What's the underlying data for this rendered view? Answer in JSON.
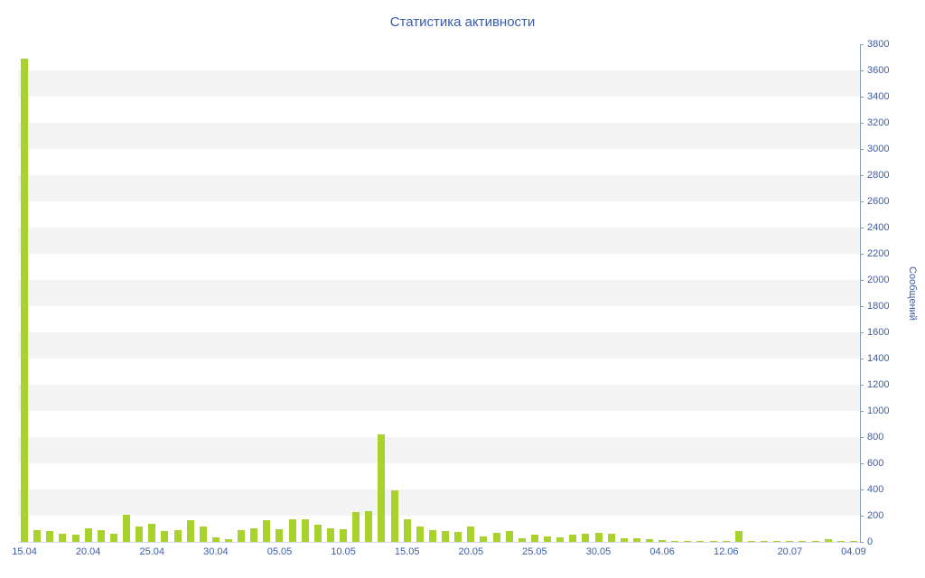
{
  "chart": {
    "title": "Статистика активности",
    "y_axis_title": "Сообщений"
  },
  "chart_data": {
    "type": "bar",
    "title": "Статистика активности",
    "xlabel": "",
    "ylabel": "Сообщений",
    "ylim": [
      0,
      3800
    ],
    "yticks": [
      0,
      200,
      400,
      600,
      800,
      1000,
      1200,
      1400,
      1600,
      1800,
      2000,
      2200,
      2400,
      2600,
      2800,
      3000,
      3200,
      3400,
      3600,
      3800
    ],
    "grid": "horizontal-stripe-bands",
    "legend_position": "none",
    "bar_color": "#a8d32d",
    "text_color": "#3a5ca8",
    "stripe_color": "#f4f4f4",
    "axis_color": "#8b9bb0",
    "x_ticks": [
      {
        "index": 0,
        "label": "15.04"
      },
      {
        "index": 5,
        "label": "20.04"
      },
      {
        "index": 10,
        "label": "25.04"
      },
      {
        "index": 15,
        "label": "30.04"
      },
      {
        "index": 20,
        "label": "05.05"
      },
      {
        "index": 25,
        "label": "10.05"
      },
      {
        "index": 30,
        "label": "15.05"
      },
      {
        "index": 35,
        "label": "20.05"
      },
      {
        "index": 40,
        "label": "25.05"
      },
      {
        "index": 45,
        "label": "30.05"
      },
      {
        "index": 50,
        "label": "04.06"
      },
      {
        "index": 55,
        "label": "12.06"
      },
      {
        "index": 60,
        "label": "20.07"
      },
      {
        "index": 65,
        "label": "04.09"
      }
    ],
    "values": [
      3690,
      90,
      85,
      60,
      55,
      100,
      90,
      60,
      205,
      120,
      135,
      85,
      90,
      165,
      115,
      35,
      20,
      90,
      100,
      165,
      95,
      175,
      175,
      130,
      100,
      95,
      225,
      235,
      820,
      390,
      170,
      120,
      90,
      85,
      75,
      120,
      40,
      70,
      85,
      30,
      55,
      40,
      35,
      55,
      60,
      70,
      60,
      30,
      30,
      20,
      15,
      10,
      10,
      5,
      10,
      10,
      80,
      5,
      5,
      5,
      10,
      10,
      5,
      20,
      5,
      10
    ]
  }
}
